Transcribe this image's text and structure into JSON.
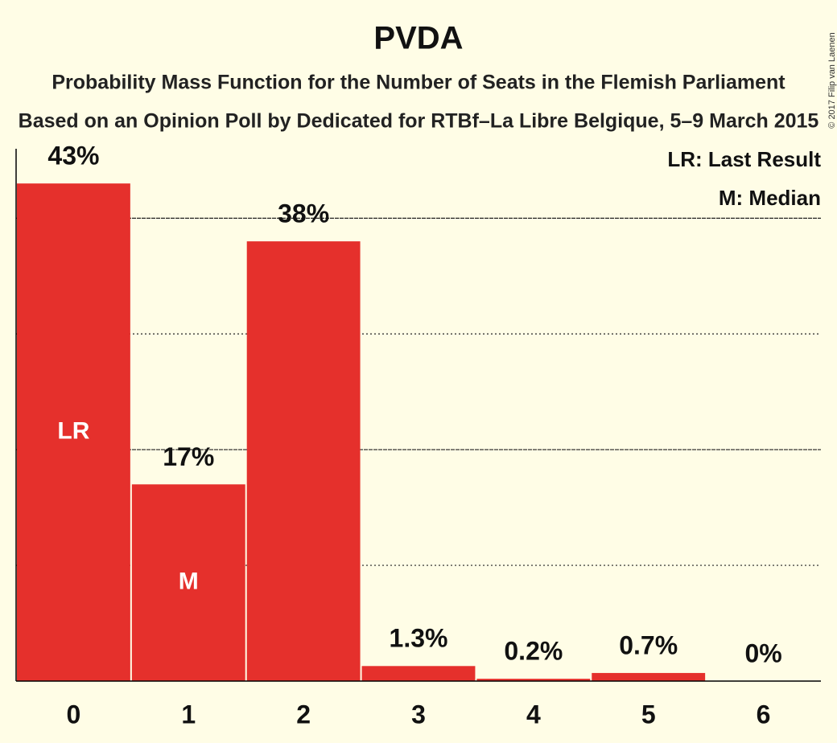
{
  "chart_data": {
    "type": "bar",
    "title": "PVDA",
    "subtitles": [
      "Probability Mass Function for the Number of Seats in the Flemish Parliament",
      "Based on an Opinion Poll by Dedicated for RTBf–La Libre Belgique, 5–9 March 2015"
    ],
    "categories": [
      "0",
      "1",
      "2",
      "3",
      "4",
      "5",
      "6"
    ],
    "values": [
      43,
      17,
      38,
      1.3,
      0.2,
      0.7,
      0
    ],
    "value_labels": [
      "43%",
      "17%",
      "38%",
      "1.3%",
      "0.2%",
      "0.7%",
      "0%"
    ],
    "color": "#e5302c",
    "ylim": [
      0,
      46
    ],
    "yticks": [
      10,
      20,
      30,
      40
    ],
    "grid": true,
    "annotations": [
      {
        "text": "LR",
        "category": 0
      },
      {
        "text": "M",
        "category": 1
      }
    ],
    "legend": [
      "LR: Last Result",
      "M: Median"
    ],
    "copyright": "© 2017 Filip van Laenen"
  }
}
